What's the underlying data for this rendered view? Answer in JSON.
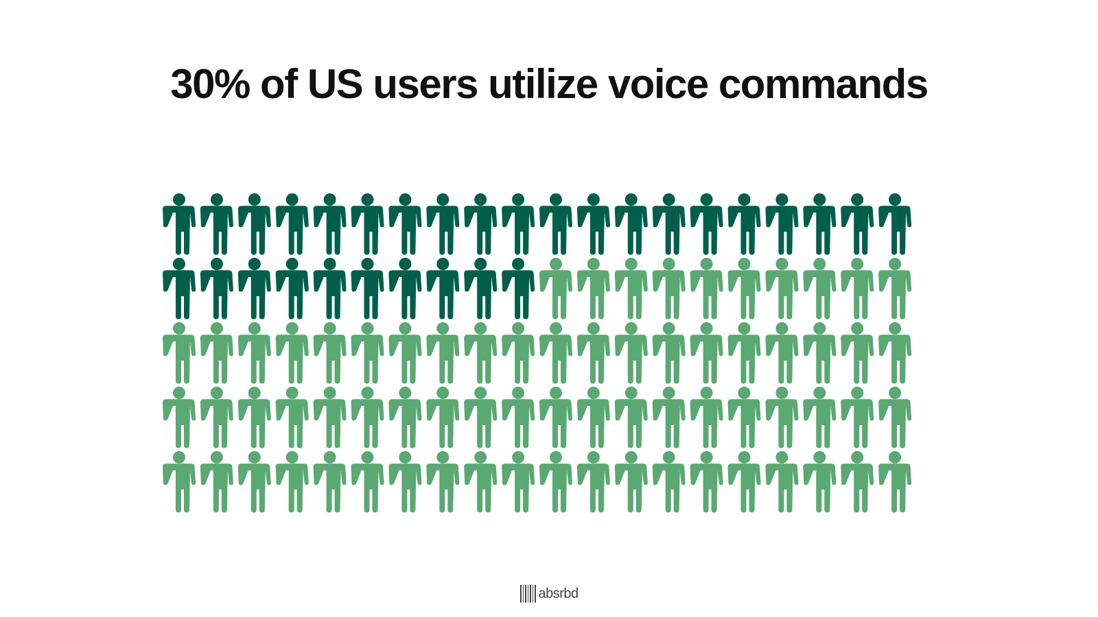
{
  "title": "30% of US users utilize voice commands",
  "chart_data": {
    "type": "pictogram",
    "icon": "person-icon",
    "total": 100,
    "highlighted": 30,
    "percent": 30,
    "rows": 5,
    "columns": 20,
    "colors": {
      "highlighted": "#005f4b",
      "rest": "#5aa872"
    }
  },
  "brand": {
    "name": "absrbd",
    "icon": "barcode-logo-icon"
  }
}
